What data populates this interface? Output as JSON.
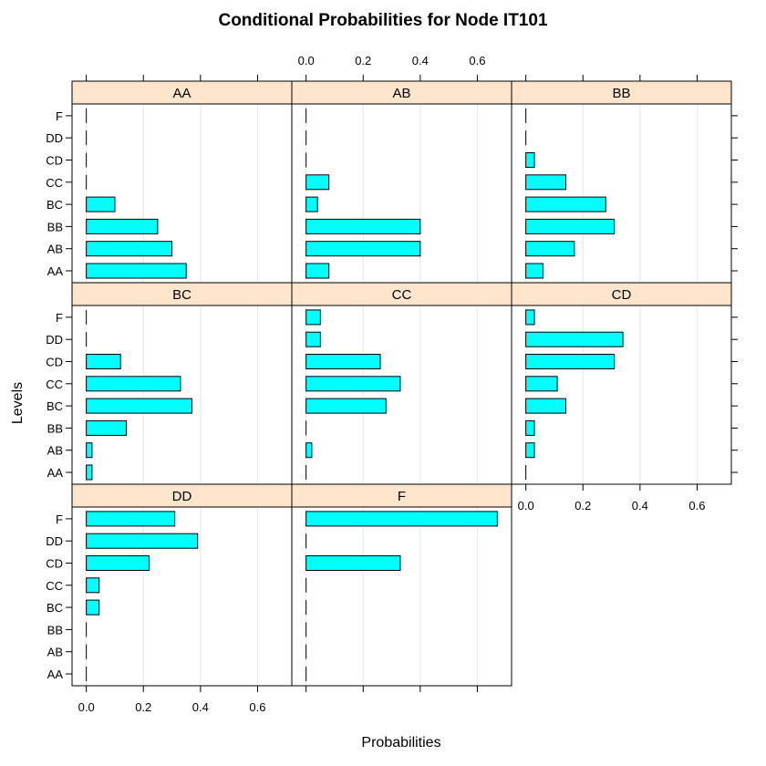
{
  "chart_data": {
    "type": "bar",
    "orientation": "horizontal",
    "title": "Conditional Probabilities for Node IT101",
    "xlabel": "Probabilities",
    "ylabel": "Levels",
    "xlim": [
      -0.05,
      0.72
    ],
    "x_ticks": [
      0.0,
      0.2,
      0.4,
      0.6
    ],
    "x_tick_labels": [
      "0.0",
      "0.2",
      "0.4",
      "0.6"
    ],
    "levels": [
      "AA",
      "AB",
      "BB",
      "BC",
      "CC",
      "CD",
      "DD",
      "F"
    ],
    "grid": true,
    "bar_color": "#00ffff",
    "strip_color": "#ffe5cc",
    "panels": [
      {
        "name": "AA",
        "values": [
          0.35,
          0.3,
          0.25,
          0.1,
          0.0,
          0.0,
          0.0,
          0.0
        ]
      },
      {
        "name": "AB",
        "values": [
          0.08,
          0.4,
          0.4,
          0.04,
          0.08,
          0.0,
          0.0,
          0.0
        ]
      },
      {
        "name": "BB",
        "values": [
          0.06,
          0.17,
          0.31,
          0.28,
          0.14,
          0.03,
          0.0,
          0.0
        ]
      },
      {
        "name": "BC",
        "values": [
          0.02,
          0.02,
          0.14,
          0.37,
          0.33,
          0.12,
          0.0,
          0.0
        ]
      },
      {
        "name": "CC",
        "values": [
          0.0,
          0.02,
          0.0,
          0.28,
          0.33,
          0.26,
          0.05,
          0.05
        ]
      },
      {
        "name": "CD",
        "values": [
          0.0,
          0.03,
          0.03,
          0.14,
          0.11,
          0.31,
          0.34,
          0.03
        ]
      },
      {
        "name": "DD",
        "values": [
          0.0,
          0.0,
          0.0,
          0.045,
          0.045,
          0.22,
          0.39,
          0.31
        ]
      },
      {
        "name": "F",
        "values": [
          0.0,
          0.0,
          0.0,
          0.0,
          0.0,
          0.33,
          0.0,
          0.67
        ]
      }
    ]
  }
}
